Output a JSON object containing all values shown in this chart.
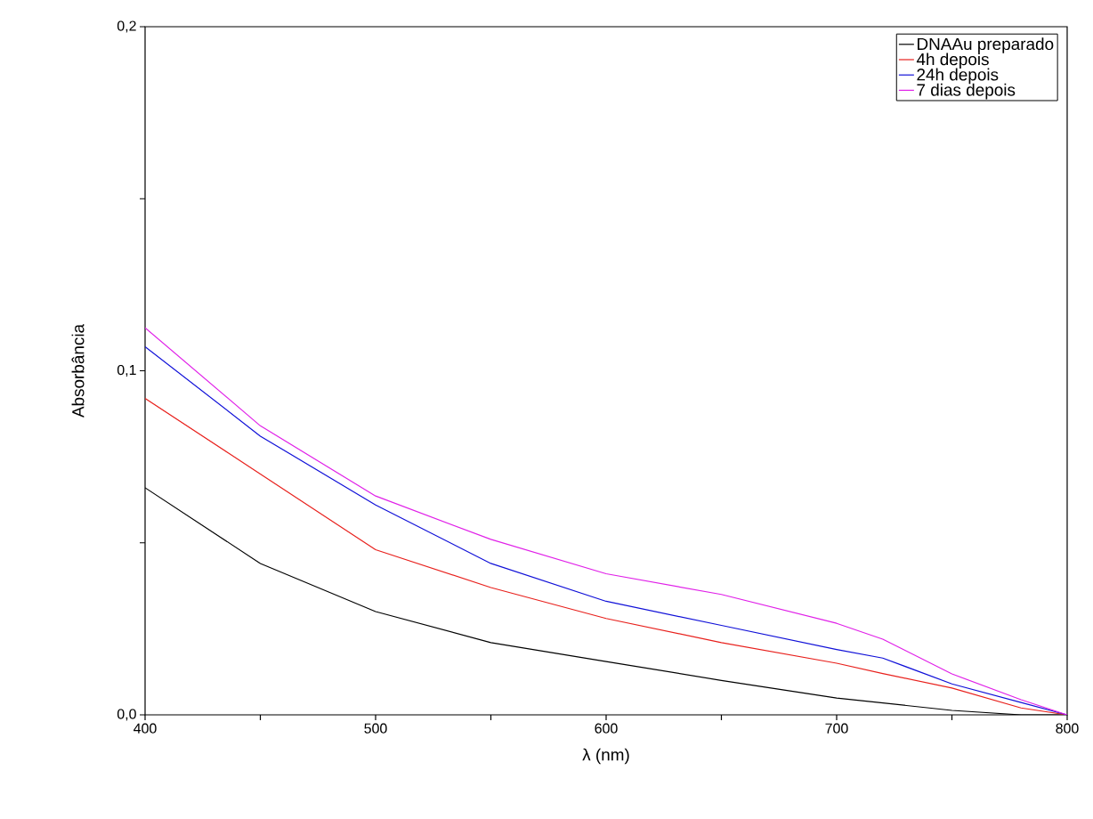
{
  "chart_data": {
    "type": "line",
    "xlabel": "λ (nm)",
    "ylabel": "Absorbância",
    "xlim": [
      400,
      800
    ],
    "ylim": [
      0,
      0.2
    ],
    "xticks": [
      400,
      {
        "value": 450,
        "label": null
      },
      500,
      {
        "value": 550,
        "label": null
      },
      600,
      {
        "value": 650,
        "label": null
      },
      700,
      {
        "value": 750,
        "label": null
      },
      800
    ],
    "yticks": [
      {
        "value": 0,
        "label": "0,0"
      },
      {
        "value": 0.05,
        "label": null
      },
      {
        "value": 0.1,
        "label": "0,1"
      },
      {
        "value": 0.15,
        "label": null
      },
      {
        "value": 0.2,
        "label": "0,2"
      }
    ],
    "legend": "top right",
    "grid": false,
    "marker": "none",
    "line_style": "solid",
    "series": [
      {
        "name": "DNAAu preparado",
        "color": "#000000",
        "x": [
          400,
          450,
          500,
          550,
          600,
          650,
          700,
          750,
          780,
          800
        ],
        "values": [
          0.066,
          0.044,
          0.03,
          0.021,
          0.0155,
          0.01,
          0.0049,
          0.0013,
          0,
          0
        ]
      },
      {
        "name": "4h depois",
        "color": "#e8201c",
        "x": [
          400,
          450,
          500,
          550,
          600,
          650,
          700,
          720,
          750,
          780,
          800
        ],
        "values": [
          0.092,
          0.07,
          0.048,
          0.037,
          0.028,
          0.021,
          0.015,
          0.012,
          0.0078,
          0.002,
          0
        ]
      },
      {
        "name": "24h depois",
        "color": "#1010d8",
        "x": [
          400,
          450,
          500,
          550,
          600,
          650,
          700,
          720,
          750,
          780,
          800
        ],
        "values": [
          0.107,
          0.081,
          0.061,
          0.044,
          0.033,
          0.026,
          0.019,
          0.0165,
          0.009,
          0.0036,
          0
        ]
      },
      {
        "name": "7 dias depois",
        "color": "#e020e8",
        "x": [
          400,
          450,
          500,
          550,
          600,
          650,
          700,
          720,
          750,
          780,
          800
        ],
        "values": [
          0.1125,
          0.084,
          0.0636,
          0.051,
          0.041,
          0.035,
          0.0266,
          0.022,
          0.0119,
          0.0044,
          0
        ]
      }
    ]
  }
}
